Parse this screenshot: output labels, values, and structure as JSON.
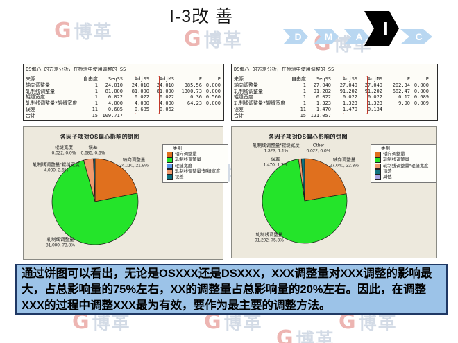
{
  "slide": {
    "title": "I-3改 善",
    "watermark": {
      "glyph": "G",
      "text": "博革"
    }
  },
  "dmaic": {
    "steps": [
      "D",
      "M",
      "A",
      "I",
      "C"
    ],
    "active_step": "I"
  },
  "anova_tables": [
    {
      "title": "OS偏心 的方差分析，在检验中使用调整的 SS",
      "columns": [
        "来源",
        "自由度",
        "SeqSS",
        "AdjSS",
        "AdjMS",
        "F",
        "P"
      ],
      "highlight_column": "AdjSS",
      "highlight_color": "#C2392B",
      "rows": [
        [
          "轴向调整量",
          "1",
          "24.010",
          "24.010",
          "24.010",
          "385.56",
          "0.000"
        ],
        [
          "轧制线调整量",
          "1",
          "81.000",
          "81.000",
          "81.000",
          "1300.73",
          "0.000"
        ],
        [
          "辊缝宽度",
          "1",
          "0.022",
          "0.022",
          "0.022",
          "0.36",
          "0.560"
        ],
        [
          "轧制线调整量*辊缝宽度",
          "1",
          "4.000",
          "4.000",
          "4.000",
          "64.23",
          "0.000"
        ],
        [
          "误差",
          "11",
          "0.685",
          "0.685",
          "0.062",
          "",
          ""
        ],
        [
          "合计",
          "15",
          "109.717",
          "",
          "",
          "",
          ""
        ]
      ]
    },
    {
      "title": "DS偏心 的方差分析，在检验中使用调整的 SS",
      "columns": [
        "来源",
        "自由度",
        "SeqSS",
        "AdjSS",
        "AdjMS",
        "F",
        "P"
      ],
      "highlight_column": "AdjSS",
      "highlight_color": "#C2392B",
      "rows": [
        [
          "轴向调整量",
          "1",
          "27.040",
          "27.040",
          "27.040",
          "202.34",
          "0.000"
        ],
        [
          "轧制线调整量",
          "1",
          "91.202",
          "91.202",
          "91.202",
          "682.47",
          "0.000"
        ],
        [
          "辊缝宽度",
          "1",
          "0.022",
          "0.022",
          "0.022",
          "0.17",
          "0.689"
        ],
        [
          "轧制线调整量*辊缝宽度",
          "1",
          "1.323",
          "1.323",
          "1.323",
          "9.90",
          "0.009"
        ],
        [
          "误差",
          "11",
          "1.470",
          "1.470",
          "0.134",
          "",
          ""
        ],
        [
          "合计",
          "15",
          "121.057",
          "",
          "",
          "",
          ""
        ]
      ]
    }
  ],
  "chart_data": [
    {
      "type": "pie",
      "title": "各因子项对OS偏心影响的饼图",
      "legend_title": "类别",
      "legend_position": "right",
      "total": 109.717,
      "slices": [
        {
          "label": "轴向调整量",
          "value": 24.01,
          "pct": 21.9,
          "color": "#E0701E",
          "callout": "轴向调整量",
          "callout_value": "24.010, 21.9%"
        },
        {
          "label": "轧制线调整量",
          "value": 81.0,
          "pct": 73.8,
          "color": "#24E42A",
          "callout": "轧制线调整量",
          "callout_value": "81.000, 73.8%"
        },
        {
          "label": "辊缝宽度",
          "value": 0.022,
          "pct": 0.0,
          "color": "#5B96E8",
          "callout": "辊缝宽度",
          "callout_value": "0.022, 0.0%"
        },
        {
          "label": "轧制线调整量*辊缝宽度",
          "value": 4.0,
          "pct": 3.6,
          "color": "#F09A6E",
          "callout": "轧制线调整量*辊缝宽度",
          "callout_value": "4.000, 3.6%"
        },
        {
          "label": "误差",
          "value": 0.685,
          "pct": 0.6,
          "color": "#0F7280",
          "callout": "误差",
          "callout_value": "0.685, 0.6%"
        }
      ]
    },
    {
      "type": "pie",
      "title": "各因子项对DS偏心影响的饼图",
      "legend_title": "类别",
      "legend_position": "right",
      "total": 121.057,
      "slices": [
        {
          "label": "轴向调整量",
          "value": 27.04,
          "pct": 22.3,
          "color": "#E0701E",
          "callout": "轴向调整量",
          "callout_value": "27.040, 22.3%"
        },
        {
          "label": "轧制线调整量",
          "value": 91.202,
          "pct": 75.3,
          "color": "#24E42A",
          "callout": "轧制线调整量",
          "callout_value": "91.202, 75.3%"
        },
        {
          "label": "轧制线调整量*辊缝宽度",
          "value": 1.323,
          "pct": 1.1,
          "color": "#F09A6E",
          "callout": "轧制线调整量*辊缝宽度",
          "callout_value": "1.323, 1.1%"
        },
        {
          "label": "误差",
          "value": 1.47,
          "pct": 1.2,
          "color": "#0F7280",
          "callout": "误差",
          "callout_value": "1.470, 1.2%"
        },
        {
          "label": "其他",
          "value": 0.022,
          "pct": 0.0,
          "color": "#A8A4E6",
          "callout": "Other",
          "callout_value": "0.022, 0.0%"
        }
      ]
    }
  ],
  "conclusion": {
    "text": "通过饼图可以看出，无论是OSXXX还是DSXXX，XXX调整量对XXX调整的影响最大，占总影响量的75%左右，XX的调整量占总影响量的20%左右。因此，在调整XXX的过程中调整XXX最为有效，要作为最主要的调整方法。"
  }
}
